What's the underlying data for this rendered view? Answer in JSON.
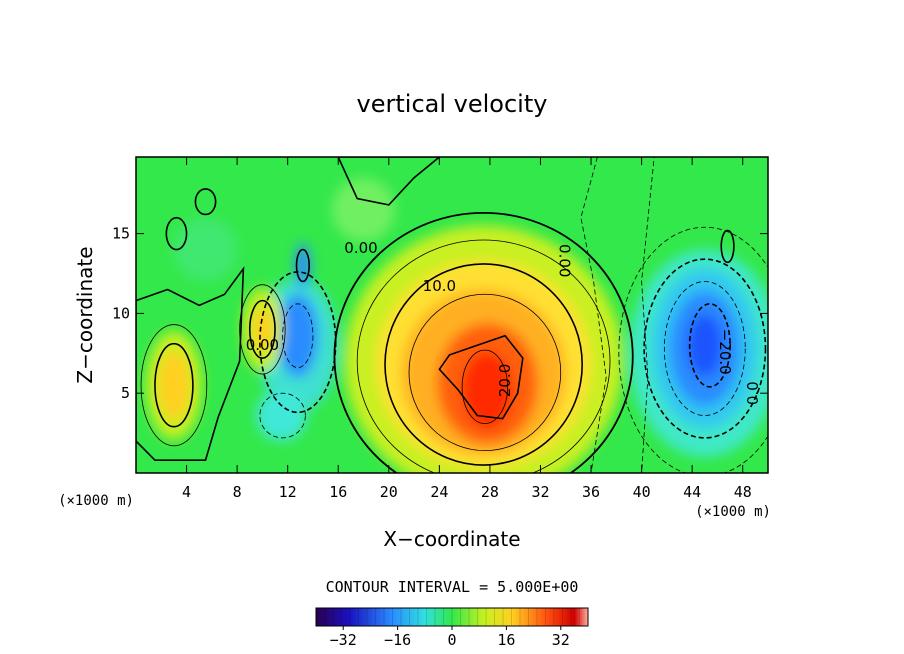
{
  "chart_data": {
    "type": "heatmap",
    "title": "vertical velocity",
    "xlabel": "X−coordinate",
    "ylabel": "Z−coordinate",
    "x_unit": "(×1000 m)",
    "xlim": [
      0,
      50
    ],
    "ylim": [
      0,
      19.8
    ],
    "x_ticks": [
      4,
      8,
      12,
      16,
      20,
      24,
      28,
      32,
      36,
      40,
      44,
      48
    ],
    "y_ticks": [
      5,
      10,
      15
    ],
    "contour_interval_text": "CONTOUR INTERVAL = 5.000E+00",
    "contour_labels": [
      "0.00",
      "0.00",
      "10.0",
      "20.0",
      "0.00",
      "−20.0",
      "0.0"
    ],
    "colorbar": {
      "range": [
        -40,
        40
      ],
      "ticks": [
        "−32",
        "−16",
        "0",
        "16",
        "32"
      ],
      "tick_values": [
        -32,
        -16,
        0,
        16,
        32
      ]
    },
    "features": [
      {
        "name": "updraft",
        "x": 27.5,
        "z": 5.5,
        "peak": 28
      },
      {
        "name": "downdraft",
        "x": 45,
        "z": 8,
        "peak": -26
      },
      {
        "name": "downdraft",
        "x": 12.5,
        "z": 8.5,
        "peak": -22
      },
      {
        "name": "updraft",
        "x": 3,
        "z": 5.5,
        "peak": 14
      },
      {
        "name": "updraft",
        "x": 10,
        "z": 9,
        "peak": 10
      }
    ]
  },
  "colors": {
    "background_field": "#33e84a",
    "positive_max": "#ff2a00",
    "negative_max": "#1c55ff",
    "contour_line": "#000000"
  }
}
